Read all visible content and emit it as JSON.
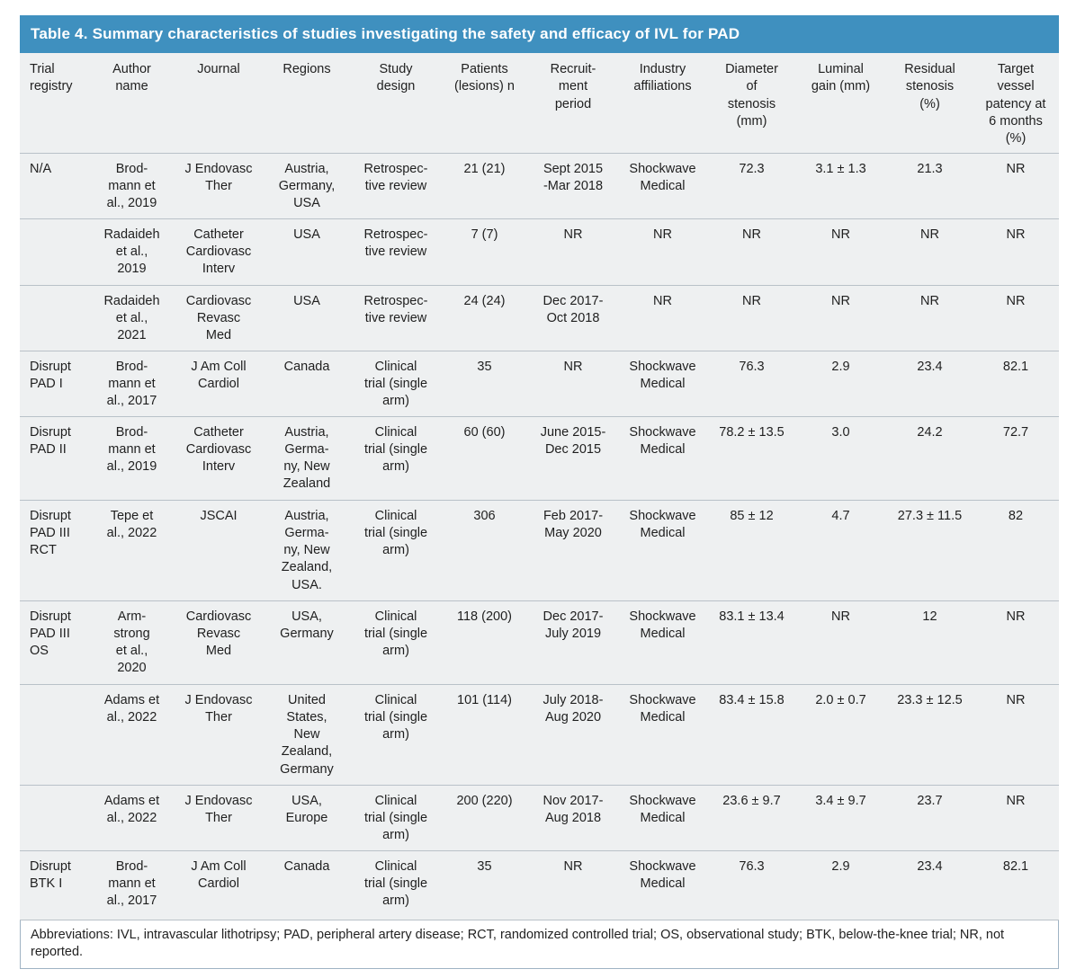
{
  "title": "Table 4. Summary characteristics of studies investigating the safety and efficacy of IVL for PAD",
  "columns": [
    "Trial\nregistry",
    "Author\nname",
    "Journal",
    "Regions",
    "Study\ndesign",
    "Patients\n(lesions) n",
    "Recruit-\nment\nperiod",
    "Industry\naffiliations",
    "Diameter\nof\nstenosis\n(mm)",
    "Luminal\ngain (mm)",
    "Residual\nstenosis\n(%)",
    "Target\nvessel\npatency at\n6 months\n(%)"
  ],
  "rows": [
    [
      "N/A",
      "Brod-\nmann et\nal., 2019",
      "J Endovasc\nTher",
      "Austria,\nGermany,\nUSA",
      "Retrospec-\ntive review",
      "21 (21)",
      "Sept 2015\n-Mar 2018",
      "Shockwave\nMedical",
      "72.3",
      "3.1 ± 1.3",
      "21.3",
      "NR"
    ],
    [
      "",
      "Radaideh\net al.,\n2019",
      "Catheter\nCardiovasc\nInterv",
      "USA",
      "Retrospec-\ntive review",
      "7 (7)",
      "NR",
      "NR",
      "NR",
      "NR",
      "NR",
      "NR"
    ],
    [
      "",
      "Radaideh\net al.,\n2021",
      "Cardiovasc\nRevasc\nMed",
      "USA",
      "Retrospec-\ntive review",
      "24 (24)",
      "Dec 2017-\nOct 2018",
      "NR",
      "NR",
      "NR",
      "NR",
      "NR"
    ],
    [
      "Disrupt\nPAD I",
      "Brod-\nmann et\nal., 2017",
      "J Am Coll\nCardiol",
      "Canada",
      "Clinical\ntrial (single\narm)",
      "35",
      "NR",
      "Shockwave\nMedical",
      "76.3",
      "2.9",
      "23.4",
      "82.1"
    ],
    [
      "Disrupt\nPAD II",
      "Brod-\nmann et\nal., 2019",
      "Catheter\nCardiovasc\nInterv",
      "Austria,\nGerma-\nny, New\nZealand",
      "Clinical\ntrial (single\narm)",
      "60 (60)",
      "June 2015-\nDec 2015",
      "Shockwave\nMedical",
      "78.2 ± 13.5",
      "3.0",
      "24.2",
      "72.7"
    ],
    [
      "Disrupt\nPAD III\nRCT",
      "Tepe et\nal., 2022",
      "JSCAI",
      "Austria,\nGerma-\nny, New\nZealand,\nUSA.",
      "Clinical\ntrial (single\narm)",
      "306",
      "Feb 2017-\nMay 2020",
      "Shockwave\nMedical",
      "85 ± 12",
      "4.7",
      "27.3 ± 11.5",
      "82"
    ],
    [
      "Disrupt\nPAD III\nOS",
      "Arm-\nstrong\net al.,\n2020",
      "Cardiovasc\nRevasc\nMed",
      "USA,\nGermany",
      "Clinical\ntrial (single\narm)",
      "118 (200)",
      "Dec 2017-\nJuly 2019",
      "Shockwave\nMedical",
      "83.1 ± 13.4",
      "NR",
      "12",
      "NR"
    ],
    [
      "",
      "Adams et\nal., 2022",
      "J Endovasc\nTher",
      "United\nStates,\nNew\nZealand,\nGermany",
      "Clinical\ntrial (single\narm)",
      "101 (114)",
      "July 2018-\nAug 2020",
      "Shockwave\nMedical",
      "83.4 ± 15.8",
      "2.0 ± 0.7",
      "23.3 ± 12.5",
      "NR"
    ],
    [
      "",
      "Adams et\nal., 2022",
      "J Endovasc\nTher",
      "USA,\nEurope",
      "Clinical\ntrial (single\narm)",
      "200 (220)",
      "Nov 2017-\nAug 2018",
      "Shockwave\nMedical",
      "23.6 ± 9.7",
      "3.4 ± 9.7",
      "23.7",
      "NR"
    ],
    [
      "Disrupt\nBTK I",
      "Brod-\nmann et\nal., 2017",
      "J Am Coll\nCardiol",
      "Canada",
      "Clinical\ntrial (single\narm)",
      "35",
      "NR",
      "Shockwave\nMedical",
      "76.3",
      "2.9",
      "23.4",
      "82.1"
    ]
  ],
  "footnote": "Abbreviations: IVL, intravascular lithotripsy; PAD, peripheral artery disease; RCT, randomized controlled trial; OS, observational study; BTK, below-the-knee trial; NR, not reported.",
  "colors": {
    "title_bar": "#3f90bf",
    "table_bg": "#eef0f1",
    "rule": "#b9c1c8"
  }
}
